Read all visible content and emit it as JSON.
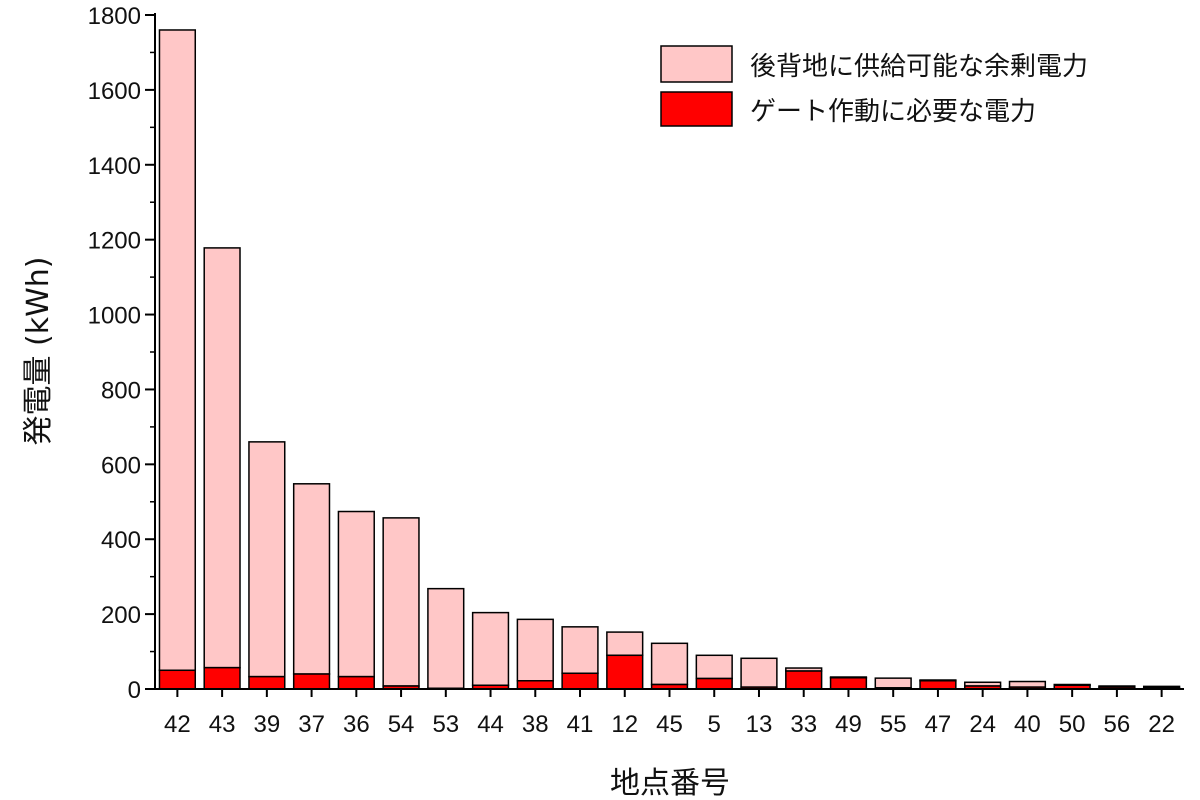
{
  "chart_data": {
    "type": "bar",
    "stacked": true,
    "xlabel": "地点番号",
    "ylabel": "発電量 (kWh)",
    "ylim": [
      0,
      1800
    ],
    "yticks": [
      0,
      200,
      400,
      600,
      800,
      1000,
      1200,
      1400,
      1600,
      1800
    ],
    "grid": false,
    "legend_position": "top-right",
    "categories": [
      "42",
      "43",
      "39",
      "37",
      "36",
      "54",
      "53",
      "44",
      "38",
      "41",
      "12",
      "45",
      "5",
      "13",
      "33",
      "49",
      "55",
      "47",
      "24",
      "40",
      "50",
      "56",
      "22"
    ],
    "series": [
      {
        "name": "ゲート作動に必要な電力",
        "color": "#ff0000",
        "values": [
          50,
          57,
          33,
          40,
          33,
          8,
          2,
          10,
          22,
          42,
          90,
          12,
          28,
          5,
          48,
          30,
          3,
          22,
          8,
          5,
          10,
          5,
          3
        ]
      },
      {
        "name": "後背地に供給可能な余剰電力",
        "color": "#ffc7c7",
        "values": [
          1710,
          1121,
          627,
          508,
          441,
          449,
          266,
          194,
          164,
          124,
          62,
          110,
          62,
          77,
          8,
          2,
          26,
          2,
          10,
          15,
          2,
          3,
          4
        ]
      }
    ]
  }
}
